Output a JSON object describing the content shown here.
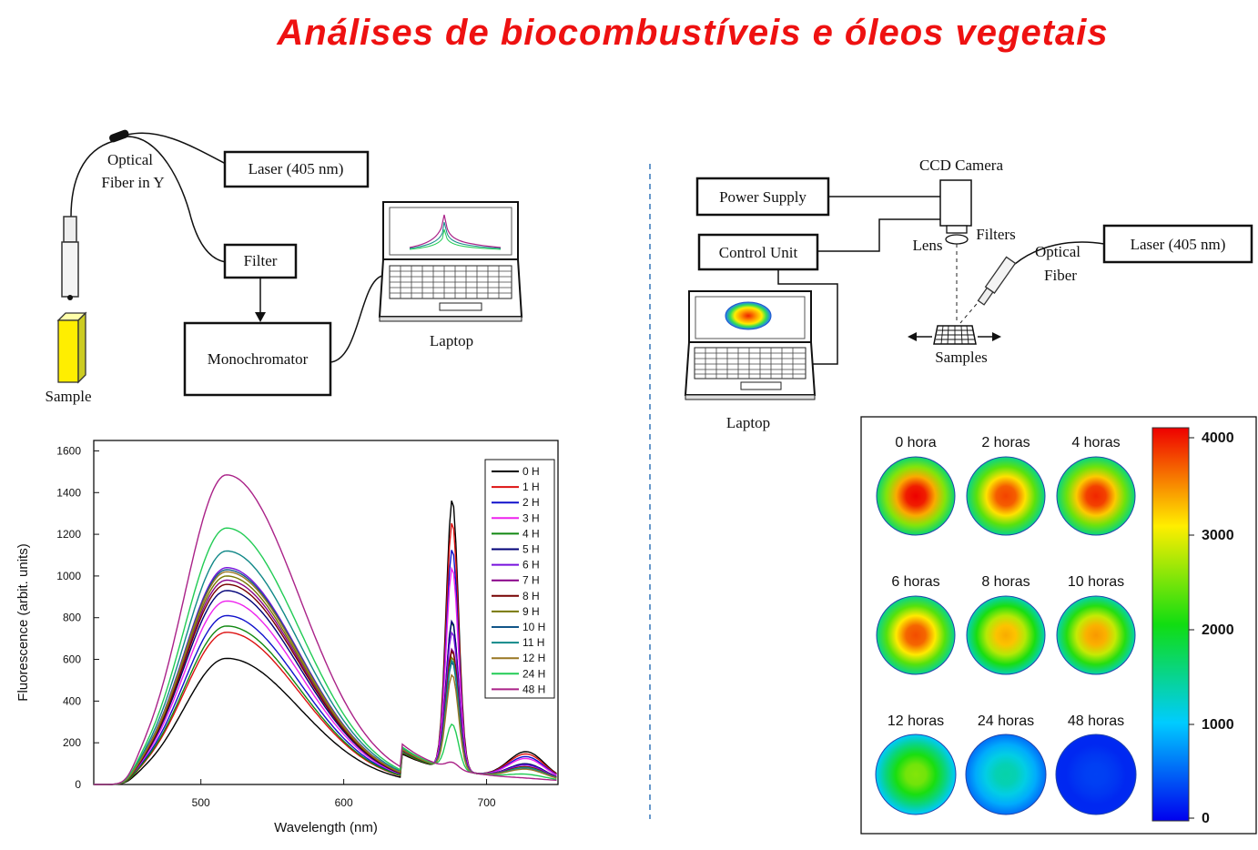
{
  "title": "Análises de biocombustíveis e óleos vegetais",
  "left_setup": {
    "optical_fiber_line1": "Optical",
    "optical_fiber_line2": "Fiber in Y",
    "laser": "Laser (405 nm)",
    "filter": "Filter",
    "monochromator": "Monochromator",
    "laptop": "Laptop",
    "sample": "Sample"
  },
  "right_setup": {
    "ccd_camera": "CCD Camera",
    "power_supply": "Power Supply",
    "control_unit": "Control Unit",
    "lens": "Lens",
    "filters": "Filters",
    "optical_fiber_line1": "Optical",
    "optical_fiber_line2": "Fiber",
    "laser": "Laser (405 nm)",
    "samples": "Samples",
    "laptop": "Laptop"
  },
  "chart_data": {
    "type": "line",
    "xlabel": "Wavelength (nm)",
    "ylabel": "Fluorescence (arbit. units)",
    "xlim": [
      425,
      750
    ],
    "ylim": [
      0,
      1650
    ],
    "xticks": [
      500,
      600,
      700
    ],
    "yticks": [
      0,
      200,
      400,
      600,
      800,
      1000,
      1200,
      1400,
      1600
    ],
    "legend_position": "top-right",
    "series": [
      {
        "name": "0 H",
        "color": "#000000",
        "peak1": 605,
        "peak2": 1300
      },
      {
        "name": "1 H",
        "color": "#dd1111",
        "peak1": 730,
        "peak2": 1190
      },
      {
        "name": "2 H",
        "color": "#1111cc",
        "peak1": 810,
        "peak2": 1060
      },
      {
        "name": "3 H",
        "color": "#ee22ee",
        "peak1": 880,
        "peak2": 970
      },
      {
        "name": "4 H",
        "color": "#118811",
        "peak1": 760,
        "peak2": 710
      },
      {
        "name": "5 H",
        "color": "#000077",
        "peak1": 930,
        "peak2": 715
      },
      {
        "name": "6 H",
        "color": "#7711dd",
        "peak1": 1040,
        "peak2": 660
      },
      {
        "name": "7 H",
        "color": "#880088",
        "peak1": 980,
        "peak2": 580
      },
      {
        "name": "8 H",
        "color": "#770000",
        "peak1": 960,
        "peak2": 570
      },
      {
        "name": "9 H",
        "color": "#777700",
        "peak1": 1000,
        "peak2": 540
      },
      {
        "name": "10 H",
        "color": "#115588",
        "peak1": 1030,
        "peak2": 515
      },
      {
        "name": "11 H",
        "color": "#118888",
        "peak1": 1120,
        "peak2": 525
      },
      {
        "name": "12 H",
        "color": "#997722",
        "peak1": 1020,
        "peak2": 455
      },
      {
        "name": "24 H",
        "color": "#22cc55",
        "peak1": 1230,
        "peak2": 215
      },
      {
        "name": "48 H",
        "color": "#aa2288",
        "peak1": 1485,
        "peak2": 30
      }
    ]
  },
  "heatmap": {
    "panels": [
      {
        "label": "0 hora",
        "level": 1.0
      },
      {
        "label": "2 horas",
        "level": 0.93
      },
      {
        "label": "4 horas",
        "level": 0.96
      },
      {
        "label": "6 horas",
        "level": 0.92
      },
      {
        "label": "8 horas",
        "level": 0.82
      },
      {
        "label": "10 horas",
        "level": 0.84
      },
      {
        "label": "12 horas",
        "level": 0.62
      },
      {
        "label": "24 horas",
        "level": 0.34
      },
      {
        "label": "48 horas",
        "level": 0.08
      }
    ],
    "colorbar_ticks": [
      "4000",
      "3000",
      "2000",
      "1000",
      "0"
    ]
  }
}
